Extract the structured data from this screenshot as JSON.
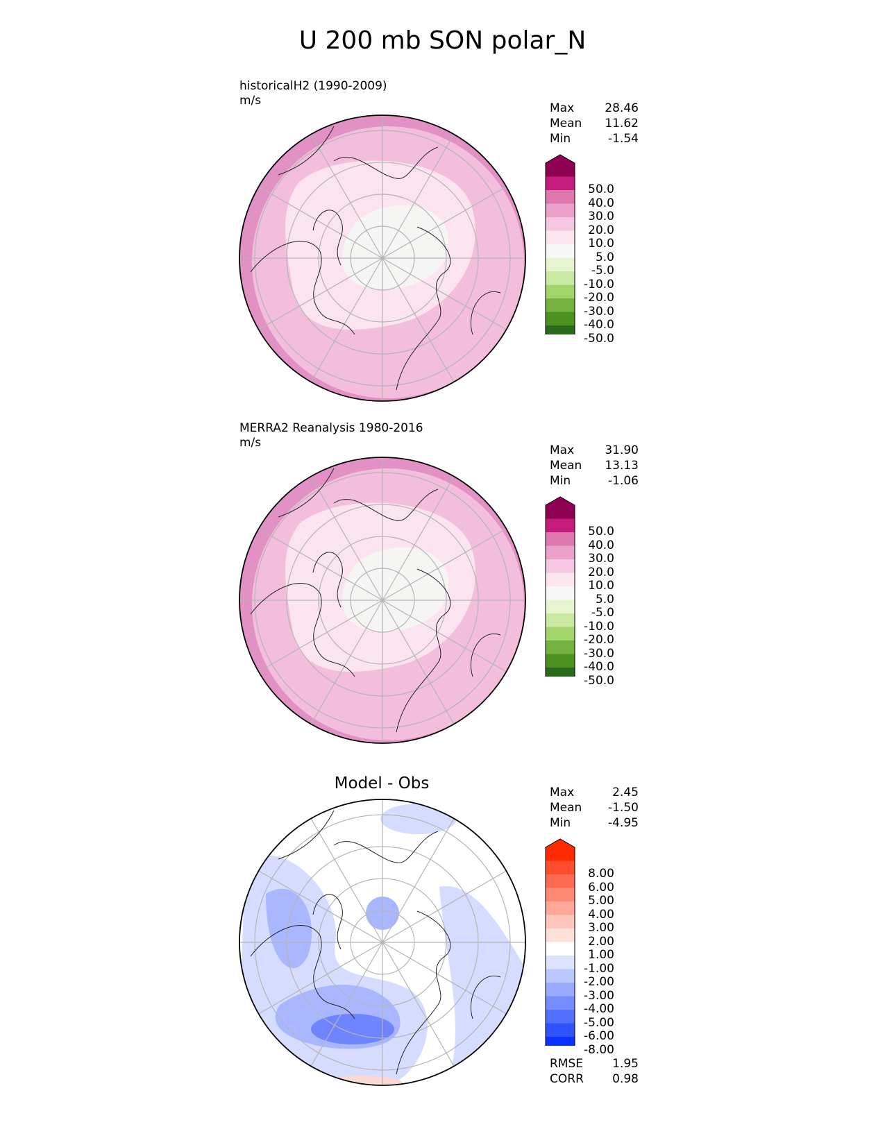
{
  "figure": {
    "title": "U 200 mb SON polar_N"
  },
  "panels": [
    {
      "label_line1": "historicalH2 (1990-2009)",
      "label_line2": "m/s",
      "center_title": "",
      "stats": [
        {
          "name": "Max",
          "value": "28.46"
        },
        {
          "name": "Mean",
          "value": "11.62"
        },
        {
          "name": "Min",
          "value": "-1.54"
        }
      ],
      "colorbar": "clim"
    },
    {
      "label_line1": "MERRA2 Reanalysis 1980-2016",
      "label_line2": "m/s",
      "center_title": "",
      "stats": [
        {
          "name": "Max",
          "value": "31.90"
        },
        {
          "name": "Mean",
          "value": "13.13"
        },
        {
          "name": "Min",
          "value": "-1.06"
        }
      ],
      "colorbar": "clim"
    },
    {
      "label_line1": "",
      "label_line2": "",
      "center_title": "Model - Obs",
      "stats": [
        {
          "name": "Max",
          "value": "2.45"
        },
        {
          "name": "Mean",
          "value": "-1.50"
        },
        {
          "name": "Min",
          "value": "-4.95"
        }
      ],
      "colorbar": "diff",
      "metrics": [
        {
          "name": "RMSE",
          "value": "1.95"
        },
        {
          "name": "CORR",
          "value": "0.98"
        }
      ]
    }
  ],
  "colorbars": {
    "clim": {
      "ticks": [
        "50.0",
        "40.0",
        "30.0",
        "20.0",
        "10.0",
        "5.0",
        "-5.0",
        "-10.0",
        "-20.0",
        "-30.0",
        "-40.0",
        "-50.0"
      ],
      "colors": [
        "#8e0152",
        "#c51b7d",
        "#de77ae",
        "#e9a0c9",
        "#f4c6e2",
        "#fbe6f0",
        "#f7f7f7",
        "#e6f5d0",
        "#c9e8a2",
        "#a1d46a",
        "#74b241",
        "#4d9221",
        "#2b6a1a",
        "#276419"
      ]
    },
    "diff": {
      "ticks": [
        "8.00",
        "6.00",
        "5.00",
        "4.00",
        "3.00",
        "2.00",
        "1.00",
        "-1.00",
        "-2.00",
        "-3.00",
        "-4.00",
        "-5.00",
        "-6.00",
        "-8.00"
      ],
      "colors": [
        "#ff2a00",
        "#ff4e2e",
        "#ff6b52",
        "#ff8a74",
        "#ffa898",
        "#ffc6bb",
        "#fde0da",
        "#ffffff",
        "#dde3ff",
        "#bbc7ff",
        "#9aabff",
        "#778dff",
        "#5370ff",
        "#3052ff",
        "#0c32ff",
        "#0024ff"
      ]
    }
  },
  "map_colors": {
    "clim_levels": {
      "edge": "#e291c4",
      "outer": "#f2bedc",
      "mid": "#fbe3ef",
      "core": "#f5f5f4"
    },
    "diff_levels": {
      "light": "#d5dcff",
      "medium": "#a8b7ff",
      "strong": "#6f84ff",
      "pos": "#fbd8d1"
    },
    "land_outline": "#222222",
    "graticule": "#b5b5b5"
  }
}
